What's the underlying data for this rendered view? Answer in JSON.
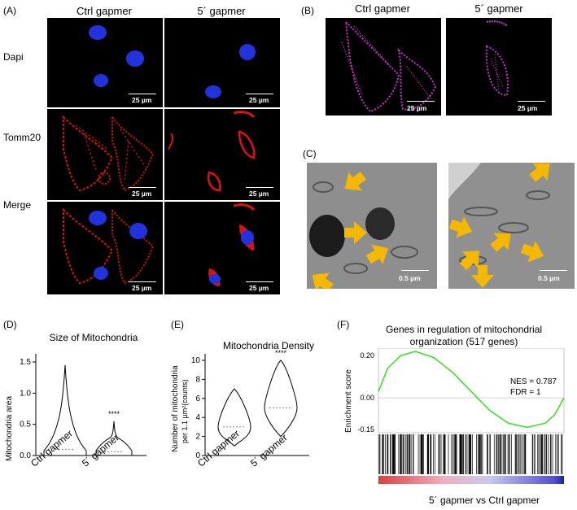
{
  "panels": {
    "a": {
      "label": "(A)",
      "columns": [
        "Ctrl gapmer",
        "5´ gapmer"
      ],
      "rows": [
        "Dapi",
        "Tomm20",
        "Merge"
      ],
      "scale": "25 µm"
    },
    "b": {
      "label": "(B)",
      "columns": [
        "Ctrl gapmer",
        "5´ gapmer"
      ],
      "scale": "25 µm"
    },
    "c": {
      "label": "(C)",
      "scale": "0.5 µm"
    },
    "d": {
      "label": "(D)"
    },
    "e": {
      "label": "(E)"
    },
    "f": {
      "label": "(F)"
    }
  },
  "colors": {
    "dapi": "#2233dd",
    "tomm20": "#dd1111",
    "mito_mask": "#cc33cc",
    "gsea_curve": "#33dd22",
    "arrow": "#f5b800"
  },
  "chart_data": [
    {
      "id": "D",
      "type": "violin",
      "title": "Size of Mitochondria",
      "ylabel": "Mitochondria area",
      "categories": [
        "Ctrl gapmer",
        "5´ gapmer"
      ],
      "ylim": [
        0,
        1.5
      ],
      "yticks": [
        "0.0",
        "0.5",
        "1.0",
        "1.5"
      ],
      "medians": [
        0.1,
        0.06
      ],
      "maxima": [
        1.45,
        0.55
      ],
      "significance": "****"
    },
    {
      "id": "E",
      "type": "violin",
      "title": "Mitochondria Density",
      "ylabel": "Number of mitochondria",
      "ylabel2": "per 1.1 µm²(counts)",
      "categories": [
        "Ctrl gapmer",
        "5´ gapmer"
      ],
      "ylim": [
        0,
        10
      ],
      "yticks": [
        "0",
        "2",
        "4",
        "6",
        "8",
        "10"
      ],
      "medians": [
        3,
        5
      ],
      "ranges": [
        [
          1,
          7
        ],
        [
          2,
          10
        ]
      ],
      "significance": "****"
    },
    {
      "id": "F",
      "type": "line",
      "title_line1": "Genes in regulation of mitochondrial",
      "title_line2": "organization (517 genes)",
      "ylabel": "Enrichment score",
      "xlabel": "5´ gapmer vs Ctrl gapmer",
      "yticks": [
        "0.20",
        "0.00",
        "-0.15"
      ],
      "ylim": [
        -0.15,
        0.22
      ],
      "annotations": [
        "NES = 0.787",
        "FDR = 1"
      ],
      "x": [
        0,
        0.05,
        0.12,
        0.2,
        0.3,
        0.4,
        0.5,
        0.6,
        0.7,
        0.8,
        0.85,
        0.9,
        0.95,
        1.0
      ],
      "y": [
        0.03,
        0.14,
        0.2,
        0.22,
        0.19,
        0.12,
        0.03,
        -0.06,
        -0.12,
        -0.14,
        -0.13,
        -0.12,
        -0.08,
        0.0
      ]
    }
  ]
}
